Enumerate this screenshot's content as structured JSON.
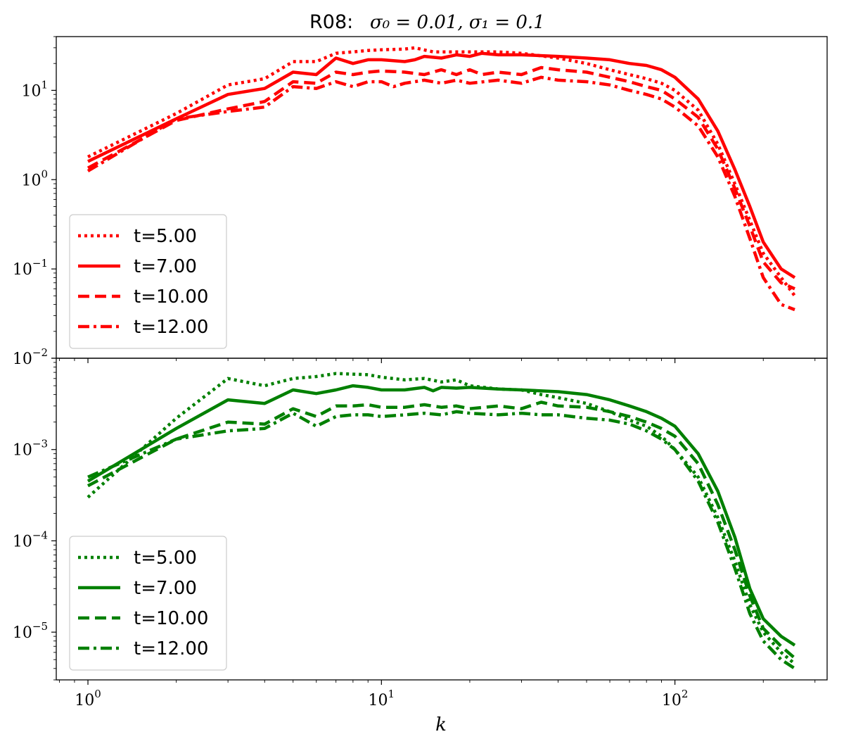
{
  "title": {
    "prefix": "R08:",
    "math": "σ₀ = 0.01,  σ₁ = 0.1"
  },
  "chart_data": [
    {
      "type": "line",
      "panel": "top",
      "color": "#ff0000",
      "xscale": "log",
      "yscale": "log",
      "xlim": [
        0.78,
        330
      ],
      "ylim": [
        0.01,
        40
      ],
      "yticks": [
        {
          "value": 10,
          "base": "10",
          "exp": "1"
        },
        {
          "value": 1,
          "base": "10",
          "exp": "0"
        },
        {
          "value": 0.1,
          "base": "10",
          "exp": "−1"
        },
        {
          "value": 0.01,
          "base": "10",
          "exp": "−2"
        }
      ],
      "legend_position": "lower-left",
      "series": [
        {
          "name": "t=5.00",
          "dash": "dotted",
          "points": [
            [
              1,
              1.8
            ],
            [
              2,
              5.5
            ],
            [
              3,
              11.5
            ],
            [
              4,
              13.5
            ],
            [
              5,
              21
            ],
            [
              6,
              21
            ],
            [
              7,
              26
            ],
            [
              8,
              27
            ],
            [
              9,
              28
            ],
            [
              10,
              28.5
            ],
            [
              12,
              29
            ],
            [
              13,
              30
            ],
            [
              15,
              27
            ],
            [
              20,
              27
            ],
            [
              25,
              27
            ],
            [
              30,
              26
            ],
            [
              40,
              23
            ],
            [
              50,
              20
            ],
            [
              60,
              17
            ],
            [
              70,
              15
            ],
            [
              80,
              13.5
            ],
            [
              90,
              12
            ],
            [
              100,
              10
            ],
            [
              120,
              6
            ],
            [
              140,
              2.5
            ],
            [
              160,
              0.9
            ],
            [
              180,
              0.35
            ],
            [
              200,
              0.15
            ],
            [
              230,
              0.08
            ],
            [
              256,
              0.05
            ]
          ]
        },
        {
          "name": "t=7.00",
          "dash": "solid",
          "points": [
            [
              1,
              1.6
            ],
            [
              2,
              4.8
            ],
            [
              3,
              9
            ],
            [
              4,
              10.5
            ],
            [
              5,
              16
            ],
            [
              6,
              15
            ],
            [
              7,
              23
            ],
            [
              8,
              20
            ],
            [
              9,
              22
            ],
            [
              10,
              22
            ],
            [
              12,
              21
            ],
            [
              13,
              22
            ],
            [
              14,
              24
            ],
            [
              16,
              23
            ],
            [
              18,
              25
            ],
            [
              20,
              24
            ],
            [
              22,
              26
            ],
            [
              25,
              25
            ],
            [
              30,
              25
            ],
            [
              40,
              24
            ],
            [
              50,
              23
            ],
            [
              60,
              22
            ],
            [
              70,
              20
            ],
            [
              80,
              19
            ],
            [
              90,
              17
            ],
            [
              100,
              14
            ],
            [
              120,
              8
            ],
            [
              140,
              3.5
            ],
            [
              160,
              1.3
            ],
            [
              180,
              0.5
            ],
            [
              200,
              0.2
            ],
            [
              230,
              0.1
            ],
            [
              256,
              0.08
            ]
          ]
        },
        {
          "name": "t=10.00",
          "dash": "dashed",
          "points": [
            [
              1,
              1.35
            ],
            [
              2,
              4.6
            ],
            [
              3,
              6.2
            ],
            [
              4,
              7.5
            ],
            [
              5,
              12.5
            ],
            [
              6,
              12
            ],
            [
              7,
              16
            ],
            [
              8,
              15
            ],
            [
              9,
              16
            ],
            [
              10,
              16.5
            ],
            [
              12,
              16
            ],
            [
              14,
              15
            ],
            [
              16,
              17
            ],
            [
              18,
              15
            ],
            [
              20,
              17
            ],
            [
              22,
              15
            ],
            [
              25,
              16
            ],
            [
              30,
              15
            ],
            [
              35,
              18
            ],
            [
              40,
              17
            ],
            [
              50,
              16
            ],
            [
              60,
              14
            ],
            [
              70,
              12.5
            ],
            [
              80,
              11
            ],
            [
              90,
              10
            ],
            [
              100,
              8
            ],
            [
              120,
              5
            ],
            [
              140,
              2.2
            ],
            [
              160,
              0.8
            ],
            [
              180,
              0.3
            ],
            [
              200,
              0.12
            ],
            [
              230,
              0.07
            ],
            [
              256,
              0.06
            ]
          ]
        },
        {
          "name": "t=12.00",
          "dash": "dashdot",
          "points": [
            [
              1,
              1.25
            ],
            [
              2,
              4.8
            ],
            [
              3,
              5.8
            ],
            [
              4,
              6.5
            ],
            [
              5,
              11
            ],
            [
              6,
              10.5
            ],
            [
              7,
              12.5
            ],
            [
              8,
              11
            ],
            [
              9,
              12.5
            ],
            [
              10,
              12.5
            ],
            [
              11,
              11
            ],
            [
              12,
              12
            ],
            [
              14,
              13
            ],
            [
              16,
              12
            ],
            [
              18,
              13
            ],
            [
              20,
              12
            ],
            [
              25,
              13
            ],
            [
              30,
              12
            ],
            [
              35,
              14
            ],
            [
              40,
              13
            ],
            [
              50,
              12.5
            ],
            [
              60,
              11.5
            ],
            [
              70,
              10
            ],
            [
              80,
              9
            ],
            [
              90,
              8
            ],
            [
              100,
              6.5
            ],
            [
              120,
              4
            ],
            [
              140,
              1.8
            ],
            [
              160,
              0.65
            ],
            [
              180,
              0.22
            ],
            [
              200,
              0.08
            ],
            [
              230,
              0.04
            ],
            [
              256,
              0.035
            ]
          ]
        }
      ]
    },
    {
      "type": "line",
      "panel": "bottom",
      "color": "#008000",
      "xscale": "log",
      "yscale": "log",
      "xlim": [
        0.78,
        330
      ],
      "ylim": [
        3e-06,
        0.01
      ],
      "yticks": [
        {
          "value": 0.001,
          "base": "10",
          "exp": "−3"
        },
        {
          "value": 0.0001,
          "base": "10",
          "exp": "−4"
        },
        {
          "value": 1e-05,
          "base": "10",
          "exp": "−5"
        }
      ],
      "xticks": [
        {
          "value": 1,
          "base": "10",
          "exp": "0"
        },
        {
          "value": 10,
          "base": "10",
          "exp": "1"
        },
        {
          "value": 100,
          "base": "10",
          "exp": "2"
        }
      ],
      "xlabel": "k",
      "legend_position": "lower-left",
      "series": [
        {
          "name": "t=5.00",
          "dash": "dotted",
          "points": [
            [
              1,
              0.0003
            ],
            [
              2,
              0.0022
            ],
            [
              3,
              0.006
            ],
            [
              4,
              0.005
            ],
            [
              5,
              0.006
            ],
            [
              6,
              0.0063
            ],
            [
              7,
              0.0068
            ],
            [
              8,
              0.0067
            ],
            [
              9,
              0.0066
            ],
            [
              10,
              0.0062
            ],
            [
              12,
              0.0058
            ],
            [
              14,
              0.006
            ],
            [
              16,
              0.0055
            ],
            [
              18,
              0.0058
            ],
            [
              20,
              0.005
            ],
            [
              25,
              0.0046
            ],
            [
              30,
              0.0045
            ],
            [
              35,
              0.004
            ],
            [
              40,
              0.0037
            ],
            [
              50,
              0.0032
            ],
            [
              60,
              0.0026
            ],
            [
              70,
              0.0021
            ],
            [
              80,
              0.0018
            ],
            [
              90,
              0.0014
            ],
            [
              100,
              0.001
            ],
            [
              120,
              0.0005
            ],
            [
              140,
              0.00018
            ],
            [
              160,
              6e-05
            ],
            [
              180,
              2e-05
            ],
            [
              200,
              1e-05
            ],
            [
              230,
              6e-06
            ],
            [
              256,
              4.5e-06
            ]
          ]
        },
        {
          "name": "t=7.00",
          "dash": "solid",
          "points": [
            [
              1,
              0.00045
            ],
            [
              2,
              0.0017
            ],
            [
              3,
              0.0035
            ],
            [
              4,
              0.0032
            ],
            [
              5,
              0.0045
            ],
            [
              6,
              0.0041
            ],
            [
              7,
              0.0045
            ],
            [
              8,
              0.005
            ],
            [
              9,
              0.0048
            ],
            [
              10,
              0.0045
            ],
            [
              12,
              0.0045
            ],
            [
              14,
              0.0048
            ],
            [
              15,
              0.0044
            ],
            [
              16,
              0.0048
            ],
            [
              18,
              0.0047
            ],
            [
              20,
              0.0048
            ],
            [
              25,
              0.0046
            ],
            [
              30,
              0.0045
            ],
            [
              40,
              0.0043
            ],
            [
              50,
              0.004
            ],
            [
              60,
              0.0035
            ],
            [
              70,
              0.003
            ],
            [
              80,
              0.0026
            ],
            [
              90,
              0.0022
            ],
            [
              100,
              0.0018
            ],
            [
              120,
              0.0009
            ],
            [
              140,
              0.00035
            ],
            [
              160,
              0.00011
            ],
            [
              180,
              3e-05
            ],
            [
              200,
              1.4e-05
            ],
            [
              230,
              9e-06
            ],
            [
              256,
              7.2e-06
            ]
          ]
        },
        {
          "name": "t=10.00",
          "dash": "dashed",
          "points": [
            [
              1,
              0.0004
            ],
            [
              2,
              0.0013
            ],
            [
              3,
              0.002
            ],
            [
              4,
              0.0019
            ],
            [
              5,
              0.0028
            ],
            [
              6,
              0.0023
            ],
            [
              7,
              0.003
            ],
            [
              8,
              0.003
            ],
            [
              9,
              0.0031
            ],
            [
              10,
              0.0029
            ],
            [
              12,
              0.0029
            ],
            [
              14,
              0.0031
            ],
            [
              16,
              0.0029
            ],
            [
              18,
              0.003
            ],
            [
              20,
              0.0028
            ],
            [
              25,
              0.003
            ],
            [
              30,
              0.0028
            ],
            [
              35,
              0.0033
            ],
            [
              40,
              0.003
            ],
            [
              50,
              0.0029
            ],
            [
              60,
              0.0026
            ],
            [
              70,
              0.0023
            ],
            [
              80,
              0.002
            ],
            [
              90,
              0.0017
            ],
            [
              100,
              0.0014
            ],
            [
              120,
              0.0007
            ],
            [
              140,
              0.00025
            ],
            [
              160,
              8e-05
            ],
            [
              180,
              2.5e-05
            ],
            [
              200,
              1.1e-05
            ],
            [
              230,
              7e-06
            ],
            [
              256,
              5.2e-06
            ]
          ]
        },
        {
          "name": "t=12.00",
          "dash": "dashdot",
          "points": [
            [
              1,
              0.0005
            ],
            [
              2,
              0.0013
            ],
            [
              3,
              0.0016
            ],
            [
              4,
              0.0017
            ],
            [
              5,
              0.0025
            ],
            [
              6,
              0.0018
            ],
            [
              7,
              0.0023
            ],
            [
              8,
              0.0024
            ],
            [
              9,
              0.0024
            ],
            [
              10,
              0.0023
            ],
            [
              12,
              0.0024
            ],
            [
              14,
              0.0025
            ],
            [
              16,
              0.0024
            ],
            [
              18,
              0.0026
            ],
            [
              20,
              0.0025
            ],
            [
              25,
              0.0024
            ],
            [
              30,
              0.0025
            ],
            [
              35,
              0.0024
            ],
            [
              40,
              0.0024
            ],
            [
              50,
              0.0022
            ],
            [
              60,
              0.0021
            ],
            [
              70,
              0.0019
            ],
            [
              80,
              0.0016
            ],
            [
              90,
              0.0013
            ],
            [
              100,
              0.001
            ],
            [
              120,
              0.00045
            ],
            [
              140,
              0.00016
            ],
            [
              160,
              5e-05
            ],
            [
              180,
              1.6e-05
            ],
            [
              200,
              8e-06
            ],
            [
              230,
              5e-06
            ],
            [
              256,
              4e-06
            ]
          ]
        }
      ]
    }
  ]
}
